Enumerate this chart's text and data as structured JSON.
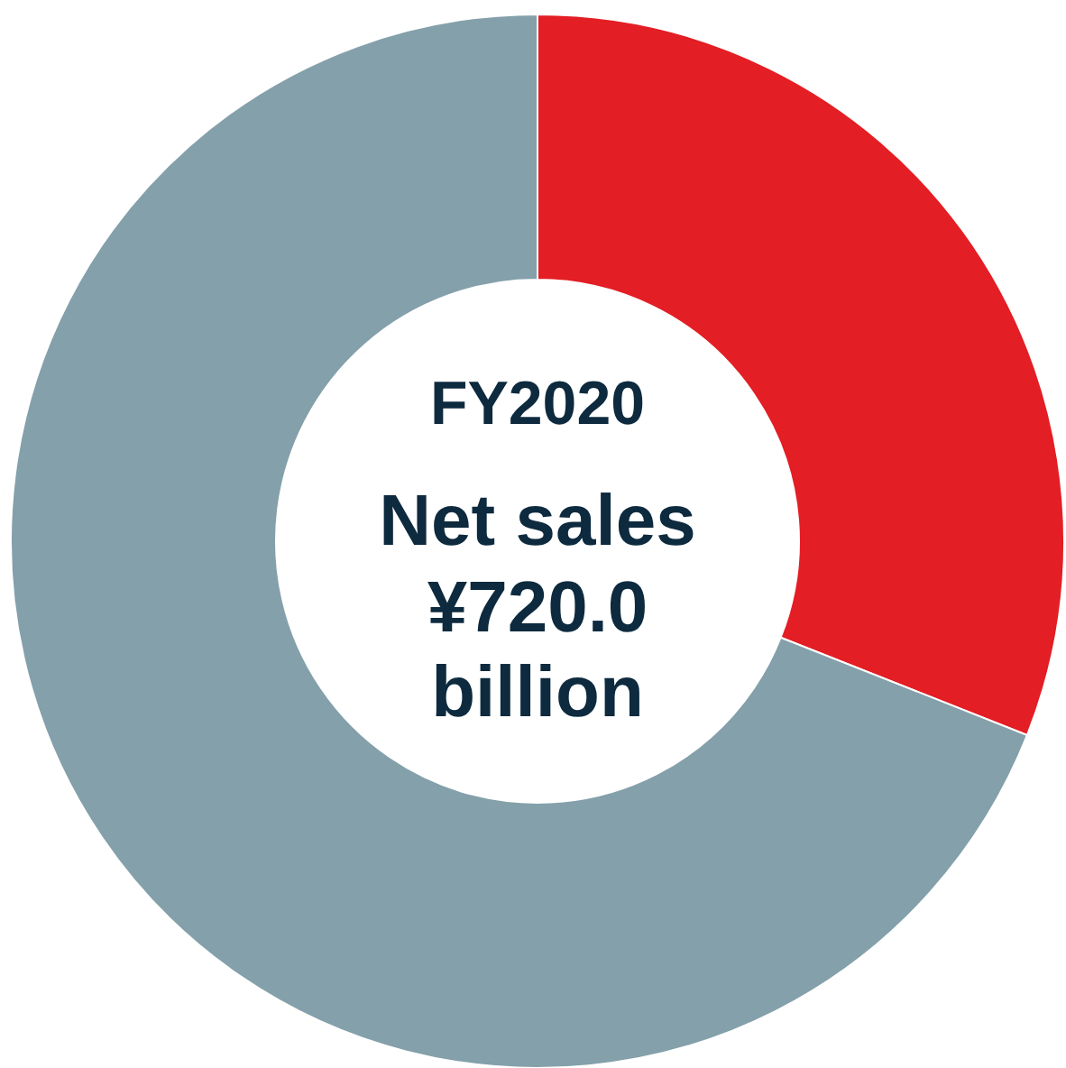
{
  "chart_data": {
    "type": "donut",
    "categories": [
      null,
      null
    ],
    "values": [
      31,
      69
    ],
    "colors": [
      "#e31e24",
      "#84a0aa"
    ],
    "annotations": [
      "FY2020",
      "Net sales",
      "¥720.0",
      "billion"
    ],
    "legend": false
  }
}
